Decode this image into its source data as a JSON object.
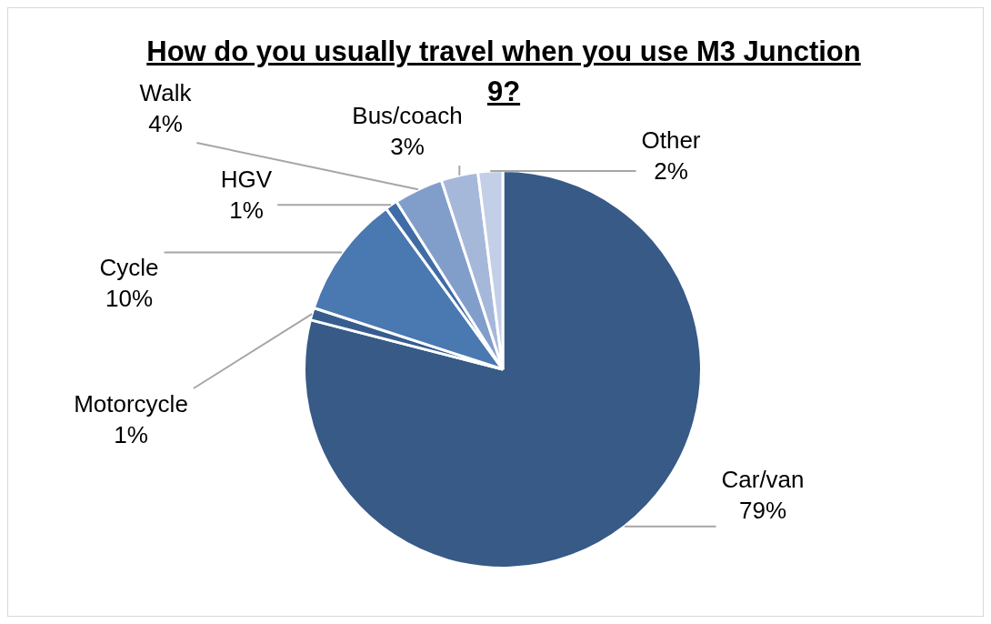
{
  "chart_data": {
    "type": "pie",
    "title": "How do you usually travel when you use M3 Junction 9?",
    "categories": [
      "Car/van",
      "Motorcycle",
      "Cycle",
      "HGV",
      "Walk",
      "Bus/coach",
      "Other"
    ],
    "values": [
      79,
      1,
      10,
      1,
      4,
      3,
      2
    ],
    "colors": [
      "#375a87",
      "#375d8f",
      "#4a78b0",
      "#3f6ba6",
      "#819ecb",
      "#a6b8da",
      "#c3cfe7"
    ],
    "value_labels": [
      "79%",
      "1%",
      "10%",
      "1%",
      "4%",
      "3%",
      "2%"
    ]
  }
}
